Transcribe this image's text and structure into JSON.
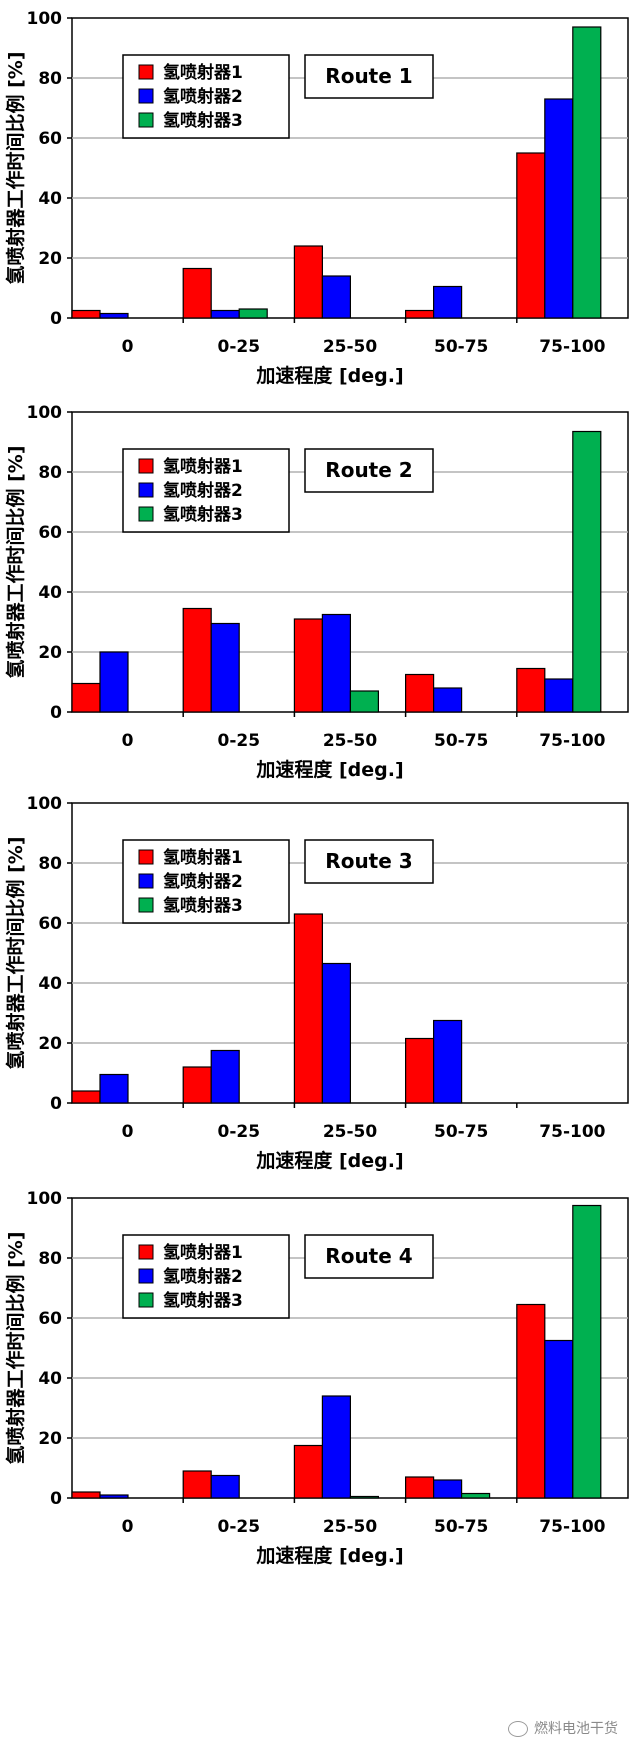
{
  "watermark": "燃料电池干货",
  "chart_data": [
    {
      "type": "bar",
      "title": "Route 1",
      "categories": [
        "0",
        "0-25",
        "25-50",
        "50-75",
        "75-100"
      ],
      "xlabel": "加速程度 [deg.]",
      "ylabel": "氢喷射器工作时间比例 [%]",
      "ylim": [
        0,
        100
      ],
      "yticks": [
        "0",
        "20",
        "40",
        "60",
        "80",
        "100"
      ],
      "grid": true,
      "legend_position": "top-left",
      "series": [
        {
          "name": "氢喷射器1",
          "color": "#ff0000",
          "values": [
            2.5,
            16.5,
            24,
            2.5,
            55
          ]
        },
        {
          "name": "氢喷射器2",
          "color": "#0000ff",
          "values": [
            1.5,
            2.5,
            14,
            10.5,
            73
          ]
        },
        {
          "name": "氢喷射器3",
          "color": "#00b050",
          "values": [
            0,
            3,
            0,
            0,
            97
          ]
        }
      ]
    },
    {
      "type": "bar",
      "title": "Route 2",
      "categories": [
        "0",
        "0-25",
        "25-50",
        "50-75",
        "75-100"
      ],
      "xlabel": "加速程度 [deg.]",
      "ylabel": "氢喷射器工作时间比例 [%]",
      "ylim": [
        0,
        100
      ],
      "yticks": [
        "0",
        "20",
        "40",
        "60",
        "80",
        "100"
      ],
      "grid": true,
      "legend_position": "top-left",
      "series": [
        {
          "name": "氢喷射器1",
          "color": "#ff0000",
          "values": [
            9.5,
            34.5,
            31,
            12.5,
            14.5
          ]
        },
        {
          "name": "氢喷射器2",
          "color": "#0000ff",
          "values": [
            20,
            29.5,
            32.5,
            8,
            11
          ]
        },
        {
          "name": "氢喷射器3",
          "color": "#00b050",
          "values": [
            0,
            0,
            7,
            0,
            93.5
          ]
        }
      ]
    },
    {
      "type": "bar",
      "title": "Route 3",
      "categories": [
        "0",
        "0-25",
        "25-50",
        "50-75",
        "75-100"
      ],
      "xlabel": "加速程度 [deg.]",
      "ylabel": "氢喷射器工作时间比例 [%]",
      "ylim": [
        0,
        100
      ],
      "yticks": [
        "0",
        "20",
        "40",
        "60",
        "80",
        "100"
      ],
      "grid": true,
      "legend_position": "top-left",
      "series": [
        {
          "name": "氢喷射器1",
          "color": "#ff0000",
          "values": [
            4,
            12,
            63,
            21.5,
            0
          ]
        },
        {
          "name": "氢喷射器2",
          "color": "#0000ff",
          "values": [
            9.5,
            17.5,
            46.5,
            27.5,
            0
          ]
        },
        {
          "name": "氢喷射器3",
          "color": "#00b050",
          "values": [
            0,
            0,
            0,
            0,
            0
          ]
        }
      ]
    },
    {
      "type": "bar",
      "title": "Route 4",
      "categories": [
        "0",
        "0-25",
        "25-50",
        "50-75",
        "75-100"
      ],
      "xlabel": "加速程度 [deg.]",
      "ylabel": "氢喷射器工作时间比例 [%]",
      "ylim": [
        0,
        100
      ],
      "yticks": [
        "0",
        "20",
        "40",
        "60",
        "80",
        "100"
      ],
      "grid": true,
      "legend_position": "top-left",
      "series": [
        {
          "name": "氢喷射器1",
          "color": "#ff0000",
          "values": [
            2,
            9,
            17.5,
            7,
            64.5
          ]
        },
        {
          "name": "氢喷射器2",
          "color": "#0000ff",
          "values": [
            1,
            7.5,
            34,
            6,
            52.5
          ]
        },
        {
          "name": "氢喷射器3",
          "color": "#00b050",
          "values": [
            0,
            0,
            0.5,
            1.5,
            97.5
          ]
        }
      ]
    }
  ]
}
